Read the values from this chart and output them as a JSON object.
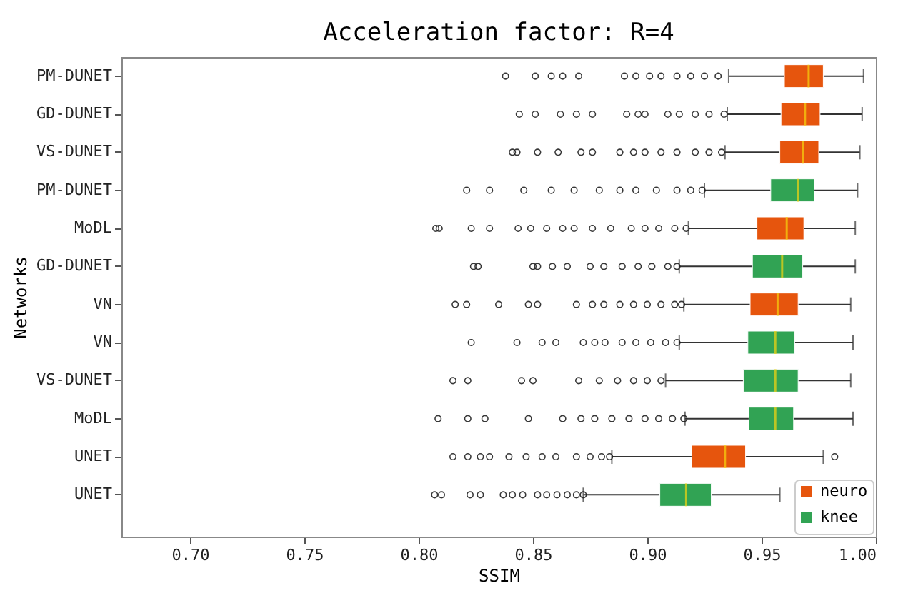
{
  "chart_data": {
    "type": "box",
    "title": "Acceleration factor: R=4",
    "xlabel": "SSIM",
    "ylabel": "Networks",
    "orientation": "horizontal",
    "legend": "bottom right",
    "grid": false,
    "categories": [
      "PM-DUNET",
      "GD-DUNET",
      "VS-DUNET",
      "PM-DUNET",
      "MoDL",
      "GD-DUNET",
      "VN",
      "VN",
      "VS-DUNET",
      "MoDL",
      "UNET",
      "UNET"
    ],
    "xlim": [
      0.67,
      1.0
    ],
    "xticks": [
      {
        "value": 0.7,
        "label": "0.70"
      },
      {
        "value": 0.75,
        "label": "0.75"
      },
      {
        "value": 0.8,
        "label": "0.80"
      },
      {
        "value": 0.85,
        "label": "0.85"
      },
      {
        "value": 0.9,
        "label": "0.90"
      },
      {
        "value": 0.95,
        "label": "0.95"
      },
      {
        "value": 1.0,
        "label": "1.00"
      }
    ],
    "series": [
      {
        "name": "neuro",
        "color": "#e6550d",
        "boxes": [
          {
            "low": 0.9356,
            "q1": 0.96,
            "median": 0.9706,
            "q3": 0.977,
            "high": 0.9946,
            "outliers": [
              0.838,
              0.851,
              0.858,
              0.863,
              0.87,
              0.89,
              0.895,
              0.901,
              0.906,
              0.913,
              0.919,
              0.925,
              0.931
            ]
          },
          {
            "low": 0.935,
            "q1": 0.9585,
            "median": 0.969,
            "q3": 0.9756,
            "high": 0.994,
            "outliers": [
              0.844,
              0.851,
              0.862,
              0.869,
              0.876,
              0.891,
              0.896,
              0.899,
              0.909,
              0.914,
              0.921,
              0.927,
              0.9336
            ]
          },
          {
            "low": 0.934,
            "q1": 0.958,
            "median": 0.968,
            "q3": 0.975,
            "high": 0.993,
            "outliers": [
              0.841,
              0.843,
              0.852,
              0.861,
              0.871,
              0.876,
              0.888,
              0.894,
              0.899,
              0.906,
              0.913,
              0.921,
              0.927,
              0.9325
            ]
          },
          null,
          {
            "low": 0.918,
            "q1": 0.948,
            "median": 0.961,
            "q3": 0.9685,
            "high": 0.991,
            "outliers": [
              0.8075,
              0.809,
              0.823,
              0.831,
              0.8435,
              0.849,
              0.856,
              0.863,
              0.868,
              0.876,
              0.884,
              0.893,
              0.899,
              0.905,
              0.912,
              0.917
            ]
          },
          null,
          {
            "low": 0.916,
            "q1": 0.945,
            "median": 0.957,
            "q3": 0.966,
            "high": 0.989,
            "outliers": [
              0.816,
              0.821,
              0.835,
              0.848,
              0.852,
              0.869,
              0.876,
              0.881,
              0.888,
              0.894,
              0.9,
              0.906,
              0.912,
              0.915
            ]
          },
          null,
          null,
          null,
          {
            "low": 0.8845,
            "q1": 0.9195,
            "median": 0.934,
            "q3": 0.943,
            "high": 0.977,
            "outliers": [
              0.815,
              0.8215,
              0.827,
              0.831,
              0.8395,
              0.847,
              0.854,
              0.86,
              0.869,
              0.875,
              0.88,
              0.8835,
              0.982
            ]
          },
          null
        ]
      },
      {
        "name": "knee",
        "color": "#31a354",
        "boxes": [
          null,
          null,
          null,
          {
            "low": 0.925,
            "q1": 0.954,
            "median": 0.966,
            "q3": 0.973,
            "high": 0.992,
            "outliers": [
              0.821,
              0.831,
              0.846,
              0.858,
              0.868,
              0.879,
              0.888,
              0.895,
              0.904,
              0.913,
              0.919,
              0.924
            ]
          },
          null,
          {
            "low": 0.914,
            "q1": 0.946,
            "median": 0.959,
            "q3": 0.968,
            "high": 0.991,
            "outliers": [
              0.824,
              0.826,
              0.85,
              0.852,
              0.8585,
              0.865,
              0.875,
              0.881,
              0.889,
              0.896,
              0.902,
              0.909,
              0.913
            ]
          },
          null,
          {
            "low": 0.914,
            "q1": 0.944,
            "median": 0.956,
            "q3": 0.9645,
            "high": 0.99,
            "outliers": [
              0.823,
              0.843,
              0.854,
              0.86,
              0.872,
              0.877,
              0.8815,
              0.889,
              0.895,
              0.9015,
              0.908,
              0.913
            ]
          },
          {
            "low": 0.908,
            "q1": 0.942,
            "median": 0.956,
            "q3": 0.966,
            "high": 0.989,
            "outliers": [
              0.815,
              0.8215,
              0.845,
              0.85,
              0.87,
              0.879,
              0.887,
              0.894,
              0.9,
              0.906
            ]
          },
          {
            "low": 0.9165,
            "q1": 0.9445,
            "median": 0.956,
            "q3": 0.964,
            "high": 0.99,
            "outliers": [
              0.8085,
              0.8215,
              0.829,
              0.848,
              0.863,
              0.871,
              0.877,
              0.8845,
              0.892,
              0.899,
              0.905,
              0.911,
              0.916
            ]
          },
          null,
          {
            "low": 0.872,
            "q1": 0.9055,
            "median": 0.917,
            "q3": 0.928,
            "high": 0.958,
            "outliers": [
              0.807,
              0.81,
              0.8225,
              0.827,
              0.837,
              0.841,
              0.8455,
              0.852,
              0.856,
              0.8605,
              0.865,
              0.869,
              0.872
            ]
          }
        ]
      }
    ]
  }
}
